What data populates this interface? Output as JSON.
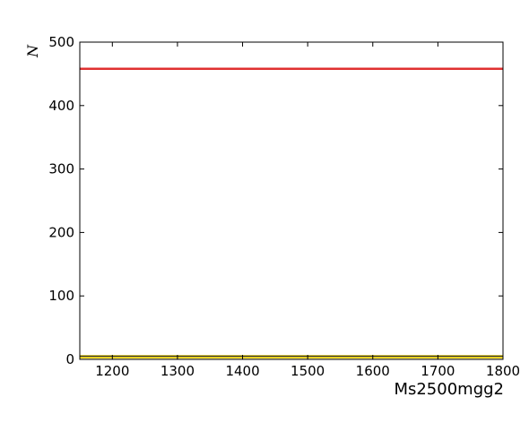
{
  "chart_data": {
    "type": "line",
    "title": "",
    "xlabel": "Ms2500mgg2",
    "ylabel": "N",
    "xlim": [
      1150,
      1800
    ],
    "ylim": [
      0,
      500
    ],
    "xticks": [
      1200,
      1300,
      1400,
      1500,
      1600,
      1700,
      1800
    ],
    "yticks": [
      0,
      100,
      200,
      300,
      400,
      500
    ],
    "grid": false,
    "legend": "none",
    "series": [
      {
        "color": "#e03030",
        "x": [
          1150,
          1800
        ],
        "y": [
          458,
          458
        ]
      },
      {
        "color": "#e8d020",
        "x": [
          1150,
          1800
        ],
        "y": [
          4,
          4
        ]
      },
      {
        "color": "#303030",
        "x": [
          1150,
          1800
        ],
        "y": [
          5,
          5
        ]
      }
    ]
  }
}
